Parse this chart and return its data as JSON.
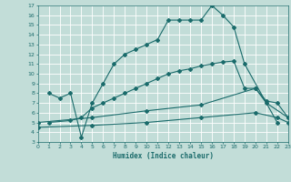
{
  "xlabel": "Humidex (Indice chaleur)",
  "bg_color": "#c2ddd8",
  "grid_color": "#ffffff",
  "line_color": "#1a6b6b",
  "xlim": [
    0,
    23
  ],
  "ylim": [
    3,
    17
  ],
  "xticks": [
    0,
    1,
    2,
    3,
    4,
    5,
    6,
    7,
    8,
    9,
    10,
    11,
    12,
    13,
    14,
    15,
    16,
    17,
    18,
    19,
    20,
    21,
    22,
    23
  ],
  "yticks": [
    3,
    4,
    5,
    6,
    7,
    8,
    9,
    10,
    11,
    12,
    13,
    14,
    15,
    16,
    17
  ],
  "curve1_x": [
    1,
    2,
    3,
    4,
    5,
    6,
    7,
    8,
    9,
    10,
    11,
    12,
    13,
    14,
    15,
    16,
    17,
    18,
    19,
    22
  ],
  "curve1_y": [
    8.0,
    7.5,
    8.0,
    3.5,
    7.0,
    9.0,
    11.0,
    12.0,
    12.5,
    13.0,
    13.5,
    15.5,
    15.5,
    15.5,
    15.5,
    17.0,
    16.0,
    14.8,
    11.0,
    5.0
  ],
  "curve2_x": [
    1,
    3,
    4,
    5,
    6,
    7,
    8,
    9,
    10,
    11,
    12,
    13,
    14,
    15,
    16,
    17,
    18,
    19,
    20,
    21,
    22,
    23
  ],
  "curve2_y": [
    5.0,
    5.2,
    5.5,
    6.5,
    7.0,
    7.5,
    8.0,
    8.5,
    9.0,
    9.5,
    10.0,
    10.3,
    10.5,
    10.8,
    11.0,
    11.2,
    11.3,
    8.5,
    8.5,
    7.2,
    7.0,
    5.5
  ],
  "curve3_x": [
    0,
    5,
    10,
    15,
    20,
    21,
    23
  ],
  "curve3_y": [
    5.0,
    5.5,
    6.2,
    6.8,
    8.5,
    7.0,
    5.5
  ],
  "curve4_x": [
    0,
    5,
    10,
    15,
    20,
    22,
    23
  ],
  "curve4_y": [
    4.5,
    4.7,
    5.0,
    5.5,
    6.0,
    5.5,
    5.0
  ]
}
